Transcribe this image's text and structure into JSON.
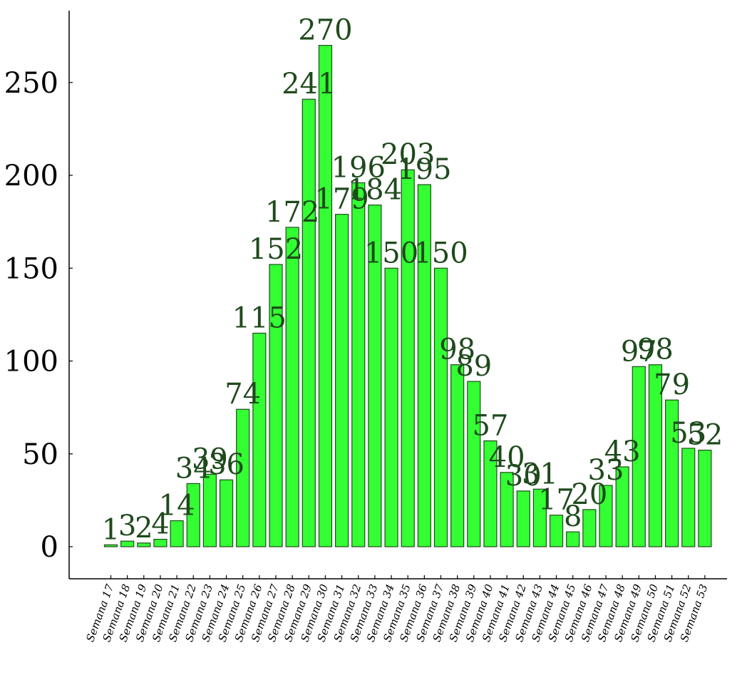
{
  "chart_data": {
    "type": "bar",
    "categories": [
      "Semana 17",
      "Semana 18",
      "Semana 19",
      "Semana 20",
      "Semana 21",
      "Semana 22",
      "Semana 23",
      "Semana 24",
      "Semana 25",
      "Semana 26",
      "Semana 27",
      "Semana 28",
      "Semana 29",
      "Semana 30",
      "Semana 31",
      "Semana 32",
      "Semana 33",
      "Semana 34",
      "Semana 35",
      "Semana 36",
      "Semana 37",
      "Semana 38",
      "Semana 39",
      "Semana 40",
      "Semana 41",
      "Semana 42",
      "Semana 43",
      "Semana 44",
      "Semana 45",
      "Semana 46",
      "Semana 47",
      "Semana 48",
      "Semana 49",
      "Semana 50",
      "Semana 51",
      "Semana 52",
      "Semana 53"
    ],
    "values": [
      1,
      3,
      2,
      4,
      14,
      34,
      39,
      36,
      74,
      115,
      152,
      172,
      241,
      270,
      179,
      196,
      184,
      150,
      203,
      195,
      150,
      98,
      89,
      57,
      40,
      30,
      31,
      17,
      8,
      20,
      33,
      43,
      97,
      98,
      79,
      53,
      52
    ],
    "yticks": [
      0,
      50,
      100,
      150,
      200,
      250
    ],
    "ylim": [
      -17,
      290
    ],
    "title": "",
    "xlabel": "",
    "ylabel": "",
    "grid": false,
    "colors": {
      "bar_fill": "#33ff33",
      "bar_stroke": "#1f4a1c",
      "label": "#1f4a1c"
    }
  }
}
